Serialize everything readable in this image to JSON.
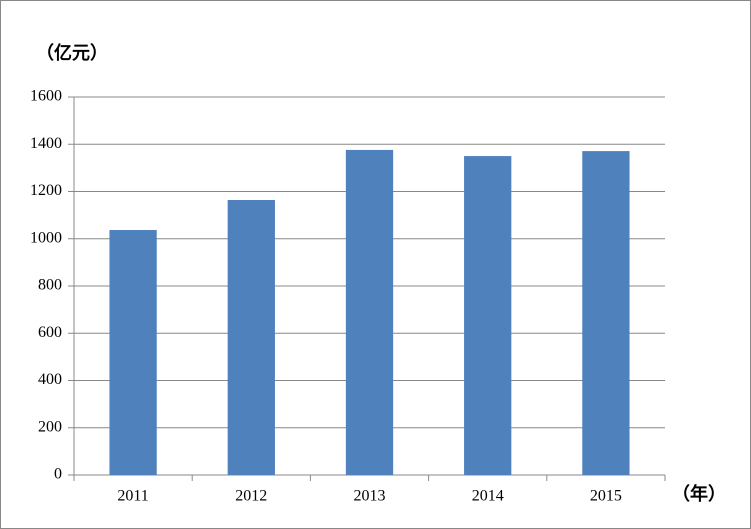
{
  "chart_data": {
    "type": "bar",
    "y_label": "（亿元）",
    "x_label": "（年）",
    "categories": [
      "2011",
      "2012",
      "2013",
      "2014",
      "2015"
    ],
    "values": [
      1037,
      1164,
      1376,
      1350,
      1371
    ],
    "color": "#4f81bd",
    "ylim": [
      0,
      1600
    ],
    "yticks": [
      0,
      200,
      400,
      600,
      800,
      1000,
      1200,
      1400,
      1600
    ],
    "grid": true
  }
}
